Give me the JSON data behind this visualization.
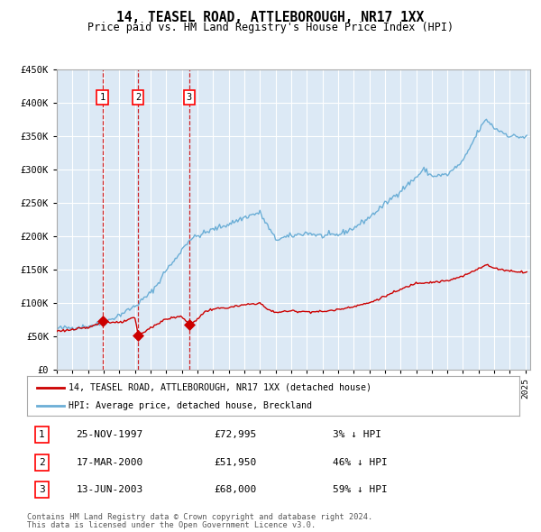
{
  "title": "14, TEASEL ROAD, ATTLEBOROUGH, NR17 1XX",
  "subtitle": "Price paid vs. HM Land Registry's House Price Index (HPI)",
  "legend_line1": "14, TEASEL ROAD, ATTLEBOROUGH, NR17 1XX (detached house)",
  "legend_line2": "HPI: Average price, detached house, Breckland",
  "hpi_color": "#6baed6",
  "price_color": "#cc0000",
  "plot_bg": "#dce9f5",
  "grid_color": "#ffffff",
  "vline_color": "#cc0000",
  "sale_color": "#cc0000",
  "transaction_years": [
    1997.9167,
    2000.2083,
    2003.4583
  ],
  "transaction_prices": [
    72995,
    51950,
    68000
  ],
  "transaction_labels": [
    "1",
    "2",
    "3"
  ],
  "anchor_years_hpi": [
    1995.0,
    1996.0,
    1997.0,
    1998.0,
    1999.0,
    2000.0,
    2001.0,
    2001.5,
    2002.0,
    2002.5,
    2003.0,
    2003.5,
    2004.0,
    2005.0,
    2006.0,
    2007.0,
    2007.5,
    2008.0,
    2008.5,
    2009.0,
    2010.0,
    2011.0,
    2012.0,
    2013.0,
    2014.0,
    2015.0,
    2016.0,
    2017.0,
    2018.0,
    2018.5,
    2019.0,
    2020.0,
    2021.0,
    2022.0,
    2022.5,
    2023.0,
    2024.0,
    2025.0
  ],
  "anchor_vals_hpi": [
    62000,
    63000,
    65000,
    70000,
    82000,
    95000,
    115000,
    130000,
    150000,
    162000,
    180000,
    195000,
    200000,
    210000,
    218000,
    228000,
    232000,
    235000,
    215000,
    195000,
    200000,
    205000,
    200000,
    202000,
    212000,
    228000,
    248000,
    268000,
    288000,
    300000,
    290000,
    292000,
    312000,
    358000,
    375000,
    362000,
    350000,
    348000
  ],
  "anchor_years_price": [
    1995.0,
    1996.0,
    1997.0,
    1997.9167,
    1998.5,
    1999.0,
    2000.0,
    2000.2083,
    2000.5,
    2001.0,
    2002.0,
    2003.0,
    2003.4583,
    2003.8,
    2004.5,
    2005.0,
    2006.0,
    2007.0,
    2007.5,
    2008.0,
    2008.5,
    2009.0,
    2010.0,
    2011.0,
    2012.0,
    2013.0,
    2014.0,
    2015.0,
    2016.0,
    2017.0,
    2018.0,
    2019.0,
    2020.0,
    2021.0,
    2022.0,
    2022.5,
    2023.0,
    2024.0,
    2025.0
  ],
  "anchor_vals_price": [
    58000,
    60000,
    63000,
    72995,
    71000,
    70000,
    78000,
    51950,
    55000,
    63000,
    76000,
    80000,
    68000,
    72000,
    87000,
    91000,
    93000,
    97000,
    98500,
    100000,
    90000,
    86000,
    88000,
    87000,
    87000,
    90000,
    95000,
    100000,
    110000,
    120000,
    130000,
    131000,
    133000,
    140000,
    152000,
    157000,
    152000,
    148000,
    146000
  ],
  "noise_seed_hpi": 42,
  "noise_seed_price": 123,
  "noise_hpi": 2000,
  "noise_price": 800,
  "table_rows": [
    [
      "1",
      "25-NOV-1997",
      "£72,995",
      "3% ↓ HPI"
    ],
    [
      "2",
      "17-MAR-2000",
      "£51,950",
      "46% ↓ HPI"
    ],
    [
      "3",
      "13-JUN-2003",
      "£68,000",
      "59% ↓ HPI"
    ]
  ],
  "footnote1": "Contains HM Land Registry data © Crown copyright and database right 2024.",
  "footnote2": "This data is licensed under the Open Government Licence v3.0.",
  "yticks": [
    0,
    50000,
    100000,
    150000,
    200000,
    250000,
    300000,
    350000,
    400000,
    450000
  ],
  "ytick_labels": [
    "£0",
    "£50K",
    "£100K",
    "£150K",
    "£200K",
    "£250K",
    "£300K",
    "£350K",
    "£400K",
    "£450K"
  ]
}
